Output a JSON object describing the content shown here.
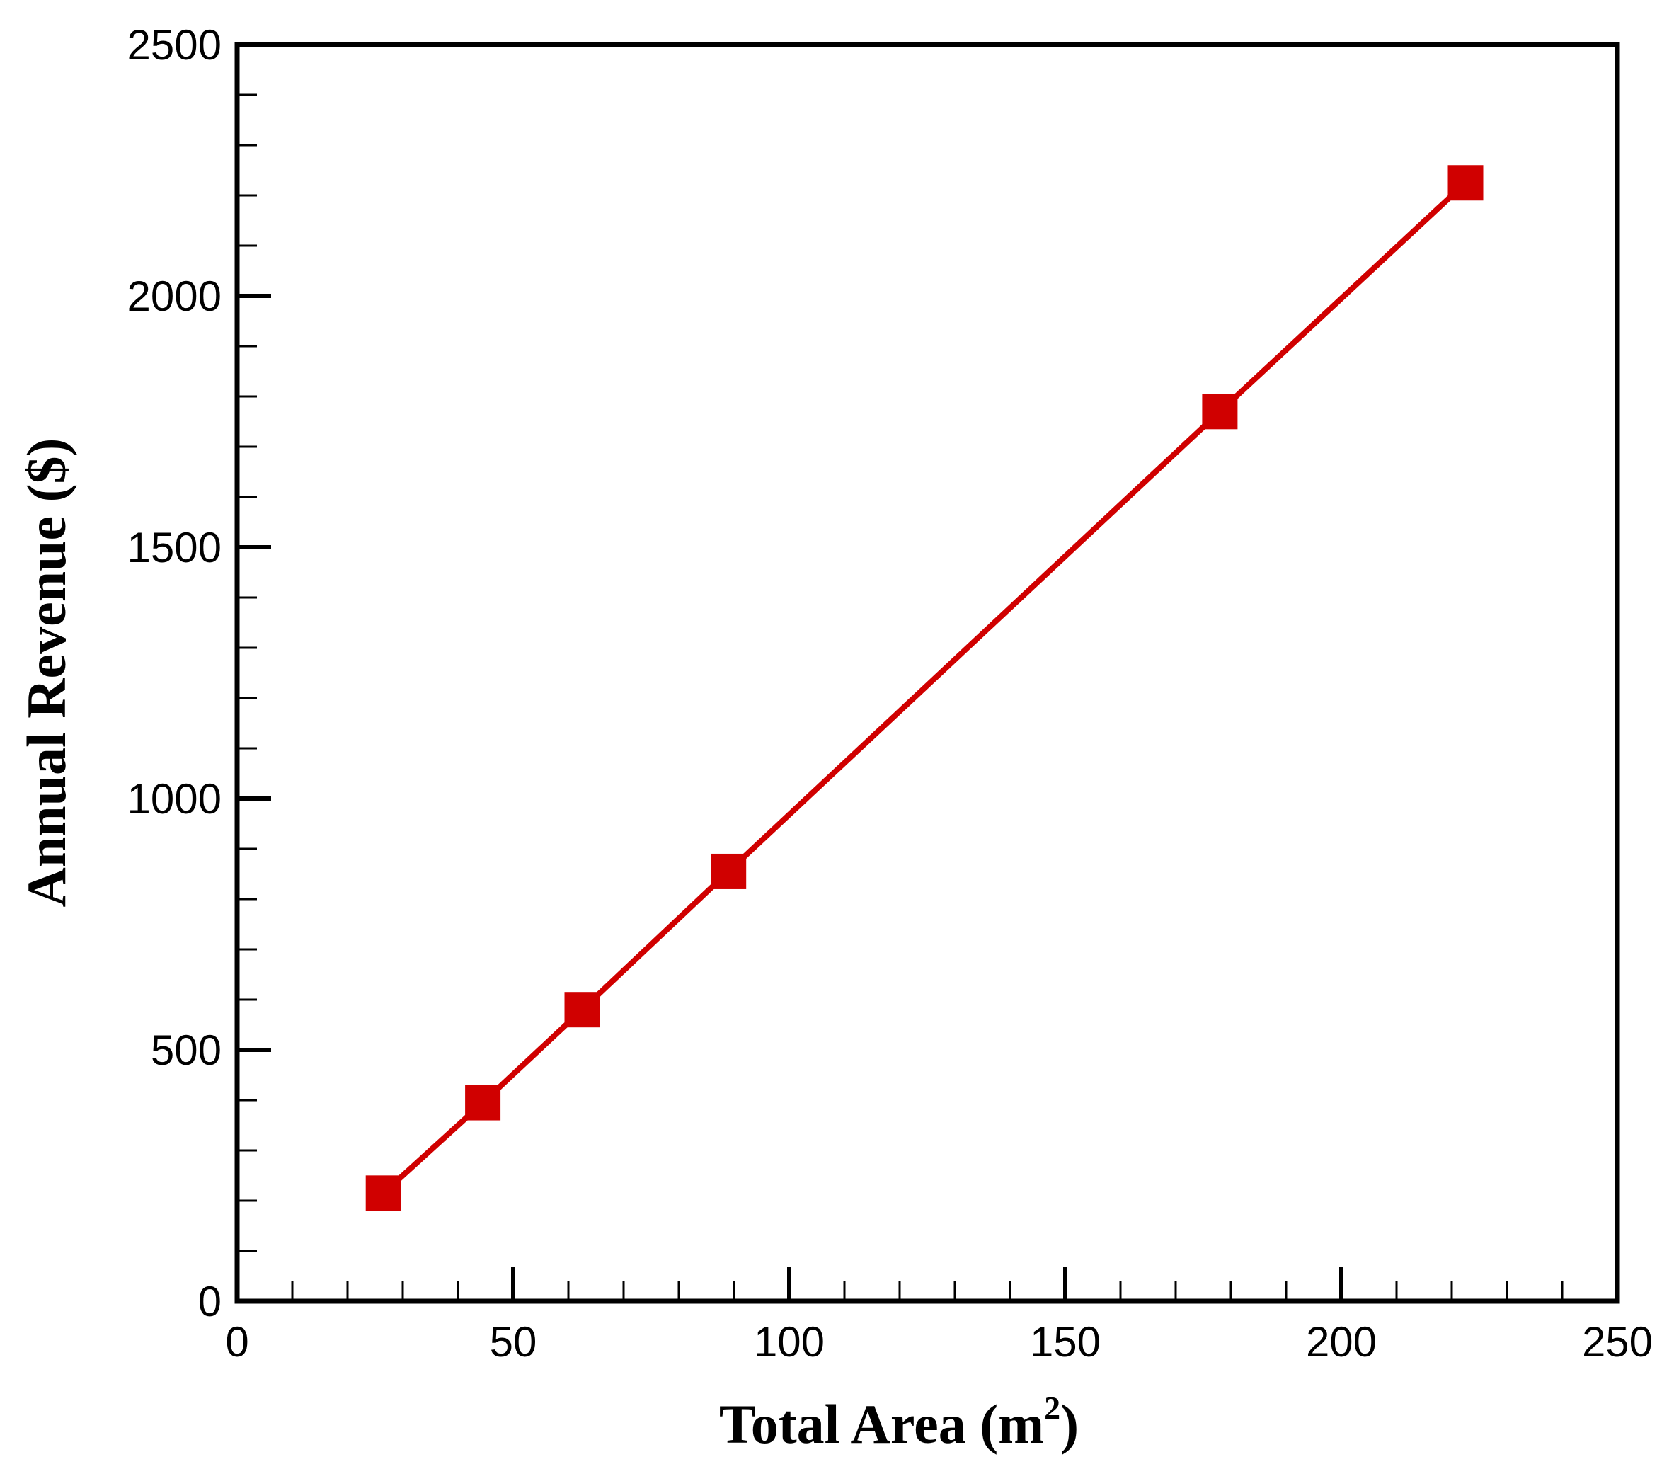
{
  "chart_data": {
    "type": "line",
    "title": "",
    "xlabel": {
      "main": "Total Area (m",
      "superscript": "2",
      "close": ")"
    },
    "ylabel": "Annual Revenue ($)",
    "xlim": [
      0,
      250
    ],
    "ylim": [
      0,
      2500
    ],
    "xticks": [
      "0",
      "50",
      "100",
      "150",
      "200",
      "250"
    ],
    "yticks": [
      "0",
      "500",
      "1000",
      "1500",
      "2000",
      "2500"
    ],
    "x_minor_step": 10,
    "y_minor_step": 100,
    "grid": false,
    "legend": "none",
    "marker": "square",
    "series": [
      {
        "x": [
          26.5,
          44.5,
          62.5,
          89,
          178,
          222.5
        ],
        "y": [
          215,
          395,
          580,
          855,
          1770,
          2225
        ],
        "color": "#d00000"
      }
    ]
  }
}
